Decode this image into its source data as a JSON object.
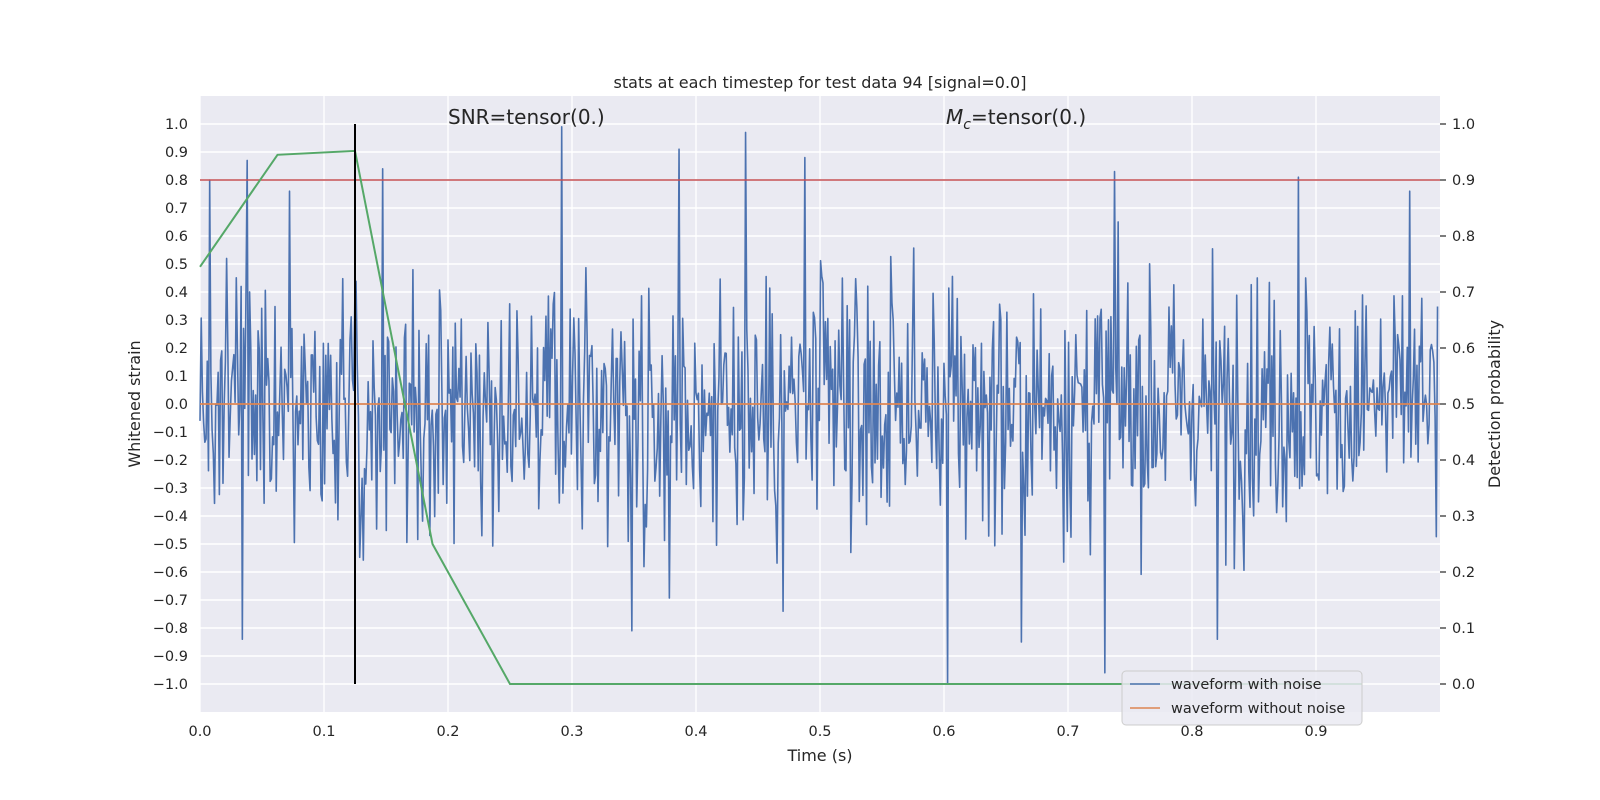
{
  "chart_data": {
    "type": "line",
    "title": "stats at each timestep for test data 94 [signal=0.0]",
    "xlabel": "Time (s)",
    "ylabel": "Whitened strain",
    "y2label": "Detection probability",
    "xlim": [
      0.0,
      1.0
    ],
    "ylim": [
      -1.1,
      1.1
    ],
    "y2lim": [
      -0.05,
      1.05
    ],
    "xticks": [
      "0.0",
      "0.1",
      "0.2",
      "0.3",
      "0.4",
      "0.5",
      "0.6",
      "0.7",
      "0.8",
      "0.9"
    ],
    "yticks": [
      "1.0",
      "0.9",
      "0.8",
      "0.7",
      "0.6",
      "0.5",
      "0.4",
      "0.3",
      "0.2",
      "0.1",
      "0.0",
      "−0.1",
      "−0.2",
      "−0.3",
      "−0.4",
      "−0.5",
      "−0.6",
      "−0.7",
      "−0.8",
      "−0.9",
      "−1.0"
    ],
    "y2ticks": [
      "1.0",
      "0.9",
      "0.8",
      "0.7",
      "0.6",
      "0.5",
      "0.4",
      "0.3",
      "0.2",
      "0.1",
      "0.0"
    ],
    "annotations": {
      "snr": "SNR=tensor(0.)",
      "mc_symbol": "M",
      "mc_subscript": "c",
      "mc_value": "=tensor(0.)"
    },
    "grid": true,
    "legend_position": "lower right",
    "series": [
      {
        "name": "waveform with noise",
        "color": "#4c72b0",
        "axis": "left",
        "generated": true,
        "x_range": [
          0.0,
          0.998
        ],
        "points": 1024,
        "y_range": [
          -1.0,
          0.99
        ],
        "peaks": [
          {
            "x": 0.0075,
            "y": 0.8
          },
          {
            "x": 0.038,
            "y": 0.87
          },
          {
            "x": 0.034,
            "y": -0.84
          },
          {
            "x": 0.072,
            "y": 0.76
          },
          {
            "x": 0.147,
            "y": 0.84
          },
          {
            "x": 0.292,
            "y": 0.99
          },
          {
            "x": 0.386,
            "y": 0.91
          },
          {
            "x": 0.44,
            "y": 0.97
          },
          {
            "x": 0.488,
            "y": 0.88
          },
          {
            "x": 0.603,
            "y": -1.0
          },
          {
            "x": 0.73,
            "y": -0.96
          },
          {
            "x": 0.738,
            "y": 0.83
          },
          {
            "x": 0.348,
            "y": -0.81
          },
          {
            "x": 0.47,
            "y": -0.74
          },
          {
            "x": 0.662,
            "y": -0.85
          },
          {
            "x": 0.886,
            "y": 0.81
          },
          {
            "x": 0.82,
            "y": -0.84
          },
          {
            "x": 0.976,
            "y": 0.76
          }
        ]
      },
      {
        "name": "waveform without noise",
        "color": "#dd8452",
        "axis": "left",
        "x": [
          0.0,
          1.0
        ],
        "y": [
          0.0,
          0.0
        ]
      },
      {
        "name": "",
        "color": "#55a868",
        "axis": "right",
        "x": [
          0.0,
          0.0625,
          0.125,
          0.1875,
          0.25,
          0.3125,
          0.375,
          0.4375,
          0.5,
          0.5625,
          0.625,
          0.6875,
          0.75,
          0.8125,
          0.875,
          0.9375
        ],
        "y": [
          0.745,
          0.945,
          0.952,
          0.25,
          0.0,
          0.0,
          0.0,
          0.0,
          0.0,
          0.0,
          0.0,
          0.0,
          0.0,
          0.0,
          0.0,
          0.0
        ]
      }
    ],
    "threshold_line": {
      "axis": "right",
      "y": 0.9,
      "color": "#c44e52"
    },
    "vertical_marker": {
      "x": 0.125,
      "color": "#000000"
    }
  }
}
